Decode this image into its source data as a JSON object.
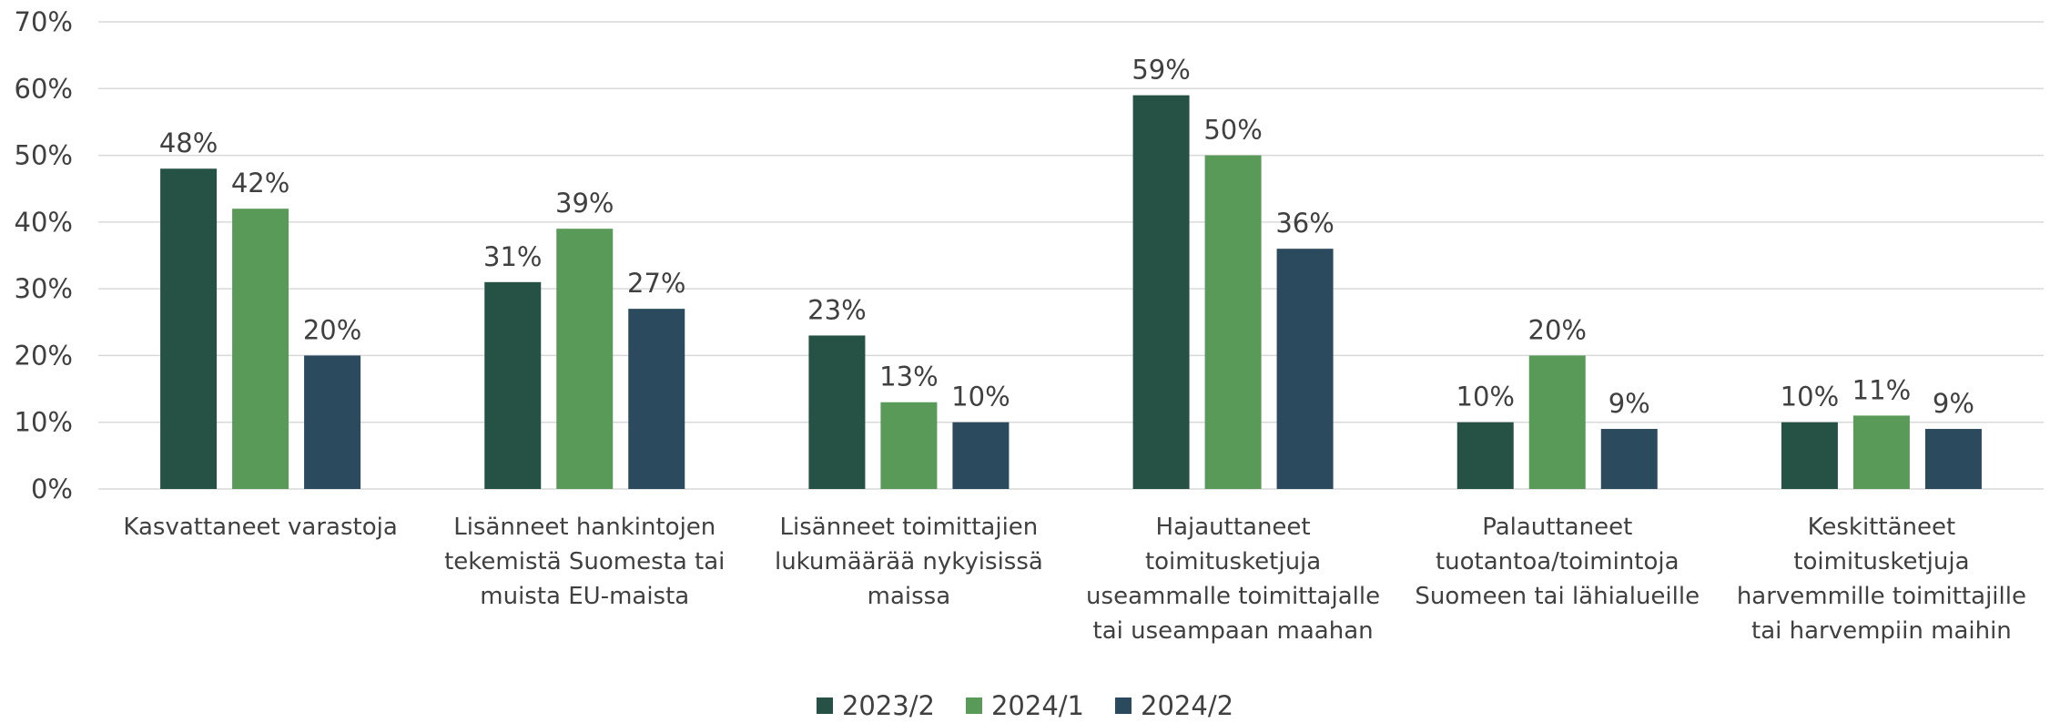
{
  "chart_data": {
    "type": "bar",
    "categories": [
      "Kasvattaneet varastoja",
      "Lisänneet hankintojen tekemistä Suomesta tai muista EU-maista",
      "Lisänneet toimittajien lukumäärää nykyisissä maissa",
      "Hajauttaneet toimitusketjuja useammalle toimittajalle tai useampaan maahan",
      "Palauttaneet tuotantoa/toimintoja Suomeen tai lähialueille",
      "Keskittäneet toimitusketjuja harvemmille toimittajille tai harvempiin maihin"
    ],
    "series": [
      {
        "name": "2023/2",
        "color": "#265245",
        "values": [
          48,
          31,
          23,
          59,
          10,
          10
        ],
        "value_labels": [
          "48%",
          "31%",
          "23%",
          "59%",
          "10%",
          "10%"
        ]
      },
      {
        "name": "2024/1",
        "color": "#5a9a58",
        "values": [
          42,
          39,
          13,
          50,
          20,
          11
        ],
        "value_labels": [
          "42%",
          "39%",
          "13%",
          "50%",
          "20%",
          "11%"
        ]
      },
      {
        "name": "2024/2",
        "color": "#2c4a5e",
        "values": [
          20,
          27,
          10,
          36,
          9,
          9
        ],
        "value_labels": [
          "20%",
          "27%",
          "10%",
          "36%",
          "9%",
          "9%"
        ]
      }
    ],
    "ylim": [
      0,
      70
    ],
    "yticks": [
      {
        "value": 0,
        "label": "0%"
      },
      {
        "value": 10,
        "label": "10%"
      },
      {
        "value": 20,
        "label": "20%"
      },
      {
        "value": 30,
        "label": "30%"
      },
      {
        "value": 40,
        "label": "40%"
      },
      {
        "value": 50,
        "label": "50%"
      },
      {
        "value": 60,
        "label": "60%"
      },
      {
        "value": 70,
        "label": "70%"
      }
    ],
    "grid": true,
    "legend": "bottom"
  }
}
